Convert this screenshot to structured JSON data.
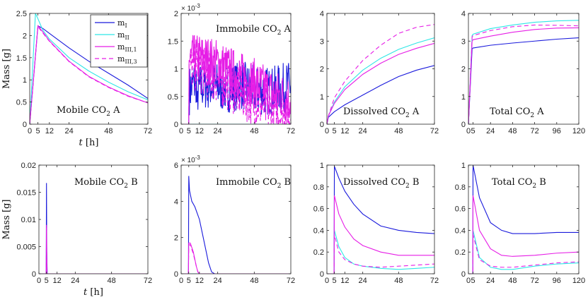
{
  "legend": {
    "entries": [
      {
        "key": "m1",
        "base": "m",
        "sub": "I",
        "color": "#1a1adc",
        "dash": ""
      },
      {
        "key": "m2",
        "base": "m",
        "sub": "II",
        "color": "#2ee6e6",
        "dash": ""
      },
      {
        "key": "m31",
        "base": "m",
        "sub": "III,1",
        "color": "#e61ee6",
        "dash": ""
      },
      {
        "key": "m33",
        "base": "m",
        "sub": "III,3",
        "color": "#e61ee6",
        "dash": "6,4"
      }
    ]
  },
  "chart_data": [
    {
      "id": "mobile-a",
      "type": "line",
      "annotation": {
        "pre": "Mobile CO",
        "sub": "2",
        "post": " A"
      },
      "ylabel": {
        "text": "Mass ",
        "bracket": "[g]"
      },
      "xlabel": {
        "t": "t",
        "unit": "[h]"
      },
      "xlim": [
        0,
        72
      ],
      "ylim": [
        0,
        2.5
      ],
      "xticks": [
        0,
        5,
        12,
        24,
        48,
        72
      ],
      "yticks": [
        0,
        0.5,
        1,
        1.5,
        2,
        2.5
      ],
      "ytick_labels": [
        "0",
        "0.5",
        "1",
        "1.5",
        "2",
        "2.5"
      ],
      "series": [
        {
          "key": "m1",
          "x": [
            0,
            5,
            8,
            12,
            24,
            36,
            48,
            60,
            72
          ],
          "y": [
            0,
            2.22,
            2.16,
            2.05,
            1.72,
            1.42,
            1.15,
            0.88,
            0.58
          ]
        },
        {
          "key": "m2",
          "x": [
            0,
            3.5,
            5,
            8,
            12,
            24,
            36,
            48,
            60,
            72
          ],
          "y": [
            0,
            2.5,
            2.38,
            2.12,
            1.92,
            1.5,
            1.2,
            0.95,
            0.73,
            0.55
          ]
        },
        {
          "key": "m31",
          "x": [
            0,
            5,
            8,
            12,
            24,
            36,
            48,
            60,
            72
          ],
          "y": [
            0,
            2.22,
            2.08,
            1.88,
            1.42,
            1.08,
            0.84,
            0.64,
            0.48
          ]
        },
        {
          "key": "m33",
          "x": [
            0,
            5,
            8,
            12,
            24,
            36,
            48,
            60,
            72
          ],
          "y": [
            0,
            2.2,
            2.06,
            1.87,
            1.41,
            1.07,
            0.83,
            0.63,
            0.48
          ]
        }
      ]
    },
    {
      "id": "immobile-a",
      "type": "line",
      "annotation": {
        "pre": "Immobile CO",
        "sub": "2",
        "post": " A"
      },
      "xlim": [
        0,
        72
      ],
      "ylim": [
        0,
        0.002
      ],
      "xticks": [
        0,
        5,
        12,
        24,
        48,
        72
      ],
      "yticks": [
        0,
        0.0005,
        0.001,
        0.0015,
        0.002
      ],
      "ytick_labels": [
        "0",
        "0.5",
        "1",
        "1.5",
        "2"
      ],
      "exponent": {
        "base": "× 10",
        "power": "-3"
      },
      "series": [
        {
          "key": "m1",
          "noisy": true,
          "x": [
            0,
            5,
            5.2,
            10,
            10.5,
            11,
            14,
            20,
            30,
            40,
            50,
            60,
            72
          ],
          "y": [
            0,
            0,
            0.0006,
            0.0008,
            5e-05,
            0.0006,
            0.0007,
            0.0007,
            0.00065,
            0.0007,
            0.0006,
            0.0006,
            0.0007
          ]
        },
        {
          "key": "m2",
          "x": [
            0,
            5,
            72
          ],
          "y": [
            0,
            0,
            0
          ]
        },
        {
          "key": "m31",
          "noisy": true,
          "x": [
            0,
            5,
            5.2,
            12,
            24,
            36,
            48,
            60,
            72
          ],
          "y": [
            0,
            0,
            0.00115,
            0.0012,
            0.0011,
            0.0009,
            0.00075,
            0.00055,
            0.00045
          ]
        },
        {
          "key": "m33",
          "noisy": true,
          "x": [
            0,
            5,
            5.2,
            12,
            24,
            36,
            48,
            60,
            72
          ],
          "y": [
            0,
            0,
            0.00105,
            0.001,
            0.0008,
            0.0006,
            0.0004,
            0.00025,
            0.0001
          ]
        }
      ]
    },
    {
      "id": "dissolved-a",
      "type": "line",
      "annotation": {
        "pre": "Dissolved CO",
        "sub": "2",
        "post": " A"
      },
      "xlim": [
        0,
        72
      ],
      "ylim": [
        0,
        4
      ],
      "xticks": [
        0,
        5,
        12,
        24,
        48,
        72
      ],
      "yticks": [
        0,
        1,
        2,
        3,
        4
      ],
      "ytick_labels": [
        "0",
        "1",
        "2",
        "3",
        "4"
      ],
      "series": [
        {
          "key": "m1",
          "x": [
            0,
            1,
            5,
            12,
            24,
            36,
            48,
            60,
            72
          ],
          "y": [
            0,
            0.25,
            0.45,
            0.7,
            1.05,
            1.4,
            1.72,
            1.95,
            2.12
          ]
        },
        {
          "key": "m2",
          "x": [
            0,
            1,
            5,
            12,
            24,
            36,
            48,
            60,
            72
          ],
          "y": [
            0,
            0.3,
            0.8,
            1.35,
            1.95,
            2.38,
            2.7,
            2.93,
            3.12
          ]
        },
        {
          "key": "m31",
          "x": [
            0,
            1,
            5,
            12,
            24,
            36,
            48,
            60,
            72
          ],
          "y": [
            0,
            0.3,
            0.75,
            1.25,
            1.8,
            2.2,
            2.52,
            2.74,
            2.92
          ]
        },
        {
          "key": "m33",
          "x": [
            0,
            1,
            5,
            12,
            24,
            36,
            48,
            60,
            72
          ],
          "y": [
            0,
            0.3,
            0.95,
            1.55,
            2.3,
            2.85,
            3.28,
            3.5,
            3.6
          ]
        }
      ]
    },
    {
      "id": "total-a",
      "type": "line",
      "annotation": {
        "pre": "Total CO",
        "sub": "2",
        "post": " A"
      },
      "xlim": [
        0,
        120
      ],
      "ylim": [
        0,
        4
      ],
      "xticks": [
        0,
        5,
        24,
        48,
        72,
        96,
        120
      ],
      "yticks": [
        0,
        1,
        2,
        3,
        4
      ],
      "ytick_labels": [
        "0",
        "1",
        "2",
        "3",
        "4"
      ],
      "series": [
        {
          "key": "m1",
          "x": [
            0,
            4,
            5,
            24,
            48,
            72,
            96,
            120
          ],
          "y": [
            0,
            2.72,
            2.75,
            2.85,
            2.93,
            3.0,
            3.07,
            3.12
          ]
        },
        {
          "key": "m2",
          "x": [
            0,
            4,
            5,
            24,
            48,
            72,
            96,
            120
          ],
          "y": [
            0,
            3.2,
            3.25,
            3.45,
            3.58,
            3.68,
            3.73,
            3.75
          ]
        },
        {
          "key": "m31",
          "x": [
            0,
            4,
            5,
            24,
            48,
            72,
            96,
            120
          ],
          "y": [
            0,
            3.0,
            3.05,
            3.18,
            3.32,
            3.42,
            3.47,
            3.48
          ]
        },
        {
          "key": "m33",
          "x": [
            0,
            4,
            5,
            24,
            48,
            72,
            96,
            120
          ],
          "y": [
            0,
            3.15,
            3.2,
            3.38,
            3.52,
            3.58,
            3.57,
            3.55
          ]
        }
      ]
    },
    {
      "id": "mobile-b",
      "type": "line",
      "annotation": {
        "pre": "Mobile CO",
        "sub": "2",
        "post": " B"
      },
      "ylabel": {
        "text": "Mass ",
        "bracket": "[g]"
      },
      "xlabel": {
        "t": "t",
        "unit": "[h]"
      },
      "xlim": [
        0,
        72
      ],
      "ylim": [
        0,
        0.02
      ],
      "xticks": [
        0,
        5,
        12,
        24,
        48,
        72
      ],
      "yticks": [
        0,
        0.005,
        0.01,
        0.015,
        0.02
      ],
      "ytick_labels": [
        "0",
        "0.005",
        "0.01",
        "0.015",
        "0.02"
      ],
      "series": [
        {
          "key": "m1",
          "x": [
            0,
            4.8,
            5,
            5.2,
            5.5,
            72
          ],
          "y": [
            0,
            0,
            0.0167,
            0.004,
            0,
            0
          ]
        },
        {
          "key": "m2",
          "x": [
            0,
            4.8,
            5,
            5.3,
            72
          ],
          "y": [
            0,
            0,
            0.008,
            0,
            0
          ]
        },
        {
          "key": "m31",
          "x": [
            0,
            4.8,
            5,
            5.3,
            72
          ],
          "y": [
            0,
            0,
            0.009,
            0,
            0
          ]
        },
        {
          "key": "m33",
          "x": [
            0,
            4.8,
            5,
            5.3,
            72
          ],
          "y": [
            0,
            0,
            0.0085,
            0,
            0
          ]
        }
      ]
    },
    {
      "id": "immobile-b",
      "type": "line",
      "annotation": {
        "pre": "Immobile CO",
        "sub": "2",
        "post": " B"
      },
      "xlim": [
        0,
        72
      ],
      "ylim": [
        0,
        0.006
      ],
      "xticks": [
        0,
        5,
        12,
        24,
        48,
        72
      ],
      "yticks": [
        0,
        0.002,
        0.004,
        0.006
      ],
      "ytick_labels": [
        "0",
        "2",
        "4",
        "6"
      ],
      "exponent": {
        "base": "× 10",
        "power": "-3"
      },
      "series": [
        {
          "key": "m1",
          "x": [
            0,
            4.8,
            5,
            5.5,
            7,
            9,
            12,
            15,
            18,
            20,
            22,
            72
          ],
          "y": [
            0,
            0,
            0.0054,
            0.0046,
            0.004,
            0.0037,
            0.003,
            0.0018,
            0.0006,
            0.0001,
            0,
            0
          ]
        },
        {
          "key": "m2",
          "x": [
            0,
            5,
            72
          ],
          "y": [
            0,
            0,
            0
          ]
        },
        {
          "key": "m31",
          "x": [
            0,
            4.8,
            5,
            6,
            8,
            10,
            11,
            12,
            72
          ],
          "y": [
            0,
            0,
            0.0017,
            0.0017,
            0.0012,
            0.0004,
            0.0001,
            0,
            0
          ]
        },
        {
          "key": "m33",
          "x": [
            0,
            4.8,
            5,
            6,
            8,
            10,
            11,
            12,
            72
          ],
          "y": [
            0,
            0,
            0.0016,
            0.0016,
            0.0011,
            0.0004,
            0.0001,
            0,
            0
          ]
        }
      ]
    },
    {
      "id": "dissolved-b",
      "type": "line",
      "annotation": {
        "pre": "Dissolved CO",
        "sub": "2",
        "post": " B"
      },
      "xlim": [
        0,
        72
      ],
      "ylim": [
        0,
        1
      ],
      "xticks": [
        0,
        5,
        12,
        24,
        48,
        72
      ],
      "yticks": [
        0,
        0.2,
        0.4,
        0.6,
        0.8,
        1
      ],
      "ytick_labels": [
        "0",
        "0.2",
        "0.4",
        "0.6",
        "0.8",
        "1"
      ],
      "series": [
        {
          "key": "m1",
          "x": [
            0,
            4.8,
            5,
            8,
            12,
            18,
            24,
            36,
            48,
            60,
            72
          ],
          "y": [
            0,
            0,
            0.99,
            0.88,
            0.76,
            0.64,
            0.55,
            0.44,
            0.4,
            0.38,
            0.37
          ]
        },
        {
          "key": "m2",
          "x": [
            0,
            4.8,
            5,
            8,
            12,
            18,
            24,
            36,
            48,
            60,
            72
          ],
          "y": [
            0,
            0,
            0.4,
            0.25,
            0.15,
            0.09,
            0.07,
            0.05,
            0.04,
            0.05,
            0.06
          ]
        },
        {
          "key": "m31",
          "x": [
            0,
            4.8,
            5,
            8,
            12,
            18,
            24,
            36,
            48,
            60,
            72
          ],
          "y": [
            0,
            0,
            0.72,
            0.55,
            0.43,
            0.32,
            0.26,
            0.2,
            0.17,
            0.17,
            0.17
          ]
        },
        {
          "key": "m33",
          "x": [
            0,
            4.8,
            5,
            8,
            12,
            18,
            24,
            36,
            48,
            60,
            72
          ],
          "y": [
            0,
            0,
            0.36,
            0.2,
            0.13,
            0.09,
            0.07,
            0.06,
            0.07,
            0.08,
            0.09
          ]
        }
      ]
    },
    {
      "id": "total-b",
      "type": "line",
      "annotation": {
        "pre": "Total CO",
        "sub": "2",
        "post": " B"
      },
      "xlim": [
        0,
        120
      ],
      "ylim": [
        0,
        1
      ],
      "xticks": [
        0,
        5,
        24,
        48,
        72,
        96,
        120
      ],
      "yticks": [
        0,
        0.2,
        0.4,
        0.6,
        0.8,
        1
      ],
      "ytick_labels": [
        "0",
        "0.2",
        "0.4",
        "0.6",
        "0.8",
        "1"
      ],
      "series": [
        {
          "key": "m1",
          "x": [
            0,
            4.8,
            5,
            12,
            24,
            36,
            48,
            72,
            96,
            120
          ],
          "y": [
            0,
            0,
            1.0,
            0.7,
            0.47,
            0.4,
            0.37,
            0.37,
            0.38,
            0.38
          ]
        },
        {
          "key": "m2",
          "x": [
            0,
            4.8,
            5,
            12,
            24,
            36,
            48,
            72,
            96,
            120
          ],
          "y": [
            0,
            0,
            0.4,
            0.15,
            0.06,
            0.04,
            0.04,
            0.07,
            0.09,
            0.1
          ]
        },
        {
          "key": "m31",
          "x": [
            0,
            4.8,
            5,
            12,
            24,
            36,
            48,
            72,
            96,
            120
          ],
          "y": [
            0,
            0,
            0.72,
            0.4,
            0.23,
            0.17,
            0.16,
            0.17,
            0.19,
            0.2
          ]
        },
        {
          "key": "m33",
          "x": [
            0,
            4.8,
            5,
            12,
            24,
            36,
            48,
            72,
            96,
            120
          ],
          "y": [
            0,
            0,
            0.36,
            0.13,
            0.07,
            0.06,
            0.06,
            0.08,
            0.1,
            0.11
          ]
        }
      ]
    }
  ]
}
